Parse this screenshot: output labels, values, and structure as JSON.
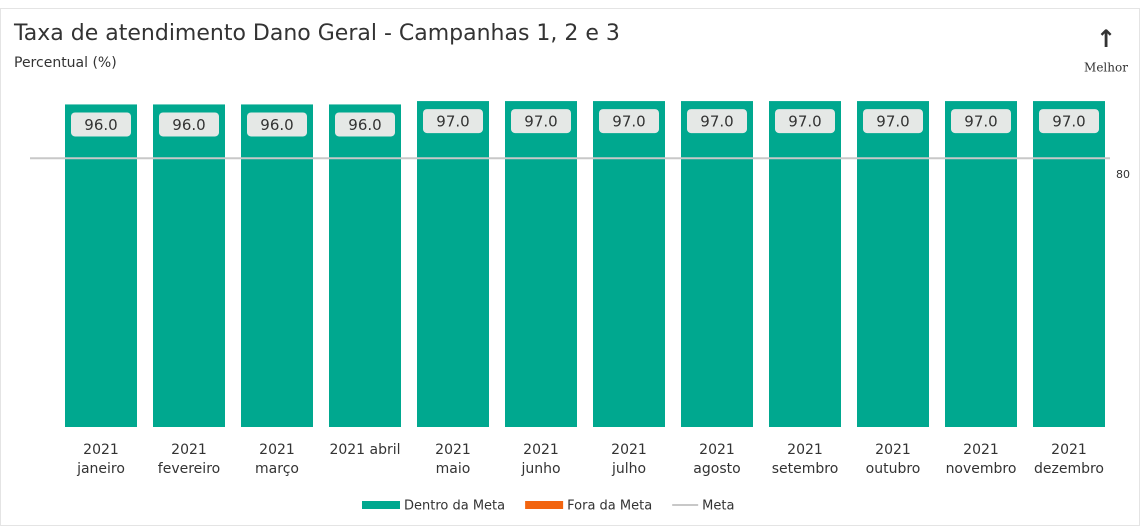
{
  "chart_data": {
    "type": "bar",
    "title": "Taxa de atendimento Dano Geral - Campanhas 1, 2 e 3",
    "subtitle": "Percentual (%)",
    "annotation": {
      "arrow": "↑",
      "text": "Melhor"
    },
    "categories": [
      [
        "2021",
        "janeiro"
      ],
      [
        "2021",
        "fevereiro"
      ],
      [
        "2021",
        "março"
      ],
      [
        "2021 abril"
      ],
      [
        "2021",
        "maio"
      ],
      [
        "2021",
        "junho"
      ],
      [
        "2021",
        "julho"
      ],
      [
        "2021",
        "agosto"
      ],
      [
        "2021",
        "setembro"
      ],
      [
        "2021",
        "outubro"
      ],
      [
        "2021",
        "novembro"
      ],
      [
        "2021",
        "dezembro"
      ]
    ],
    "series": [
      {
        "name": "Dentro da Meta",
        "color": "#00a88f",
        "values": [
          96,
          96,
          96,
          96,
          97,
          97,
          97,
          97,
          97,
          97,
          97,
          97
        ],
        "value_labels": [
          "96.0",
          "96.0",
          "96.0",
          "96.0",
          "97.0",
          "97.0",
          "97.0",
          "97.0",
          "97.0",
          "97.0",
          "97.0",
          "97.0"
        ]
      },
      {
        "name": "Fora da Meta",
        "color": "#f2640f",
        "values": [
          null,
          null,
          null,
          null,
          null,
          null,
          null,
          null,
          null,
          null,
          null,
          null
        ]
      }
    ],
    "meta": {
      "name": "Meta",
      "color": "#c8c8c8",
      "value": 80
    },
    "ylim": [
      0,
      100
    ]
  }
}
